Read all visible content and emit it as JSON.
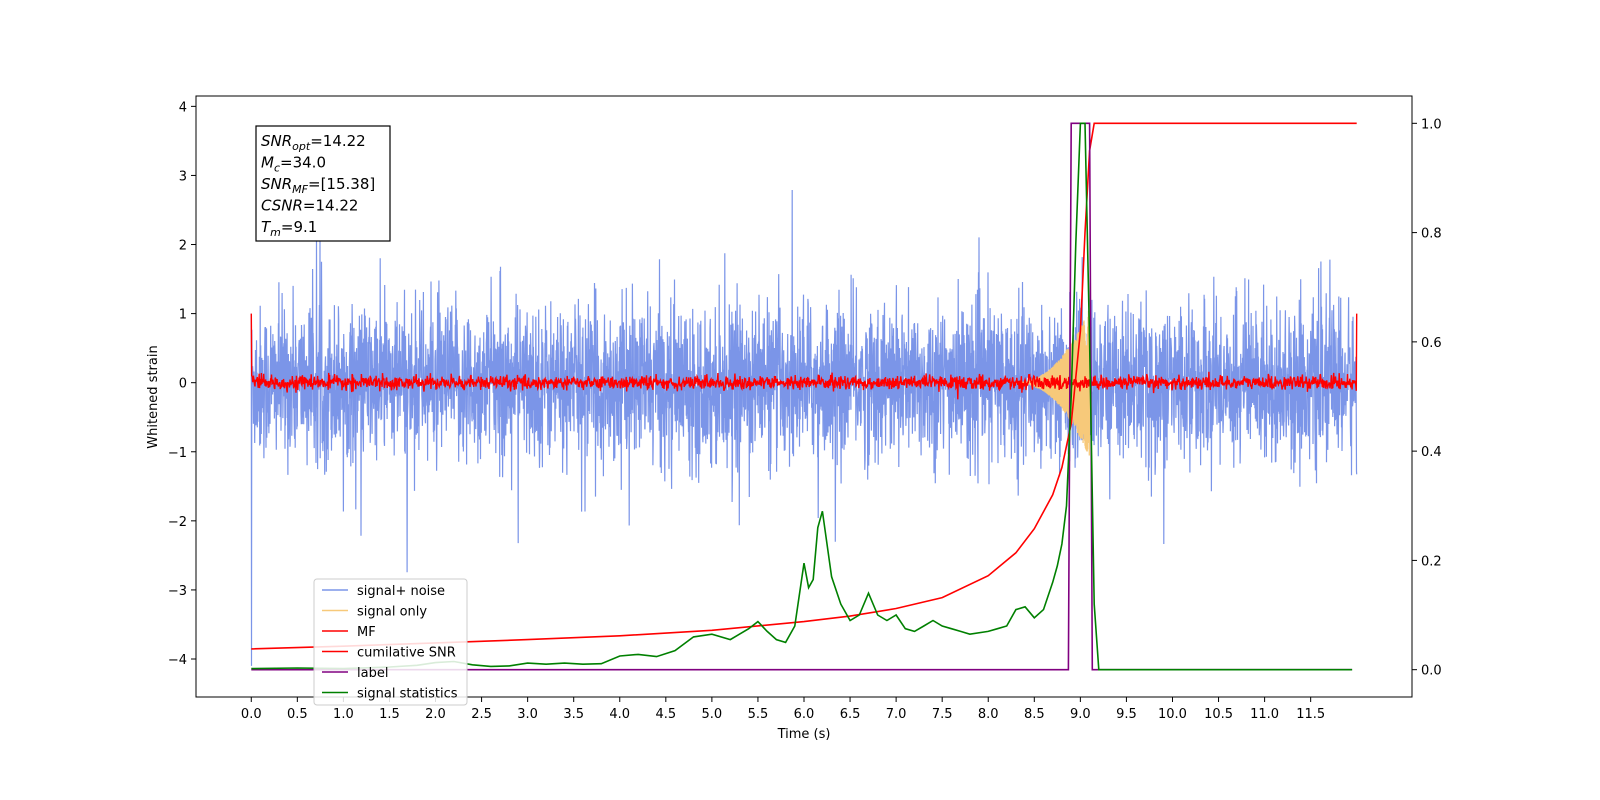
{
  "chart_data": {
    "type": "line",
    "xlabel": "Time (s)",
    "ylabel": "Whitened strain",
    "xlim": [
      -0.6,
      12.6
    ],
    "ylim": [
      -4.55,
      4.15
    ],
    "y2lim": [
      -0.05,
      1.05
    ],
    "grid": false,
    "legend_position": "lower-left",
    "x_ticks": [
      "0.0",
      "0.5",
      "1.0",
      "1.5",
      "2.0",
      "2.5",
      "3.0",
      "3.5",
      "4.0",
      "4.5",
      "5.0",
      "5.5",
      "6.0",
      "6.5",
      "7.0",
      "7.5",
      "8.0",
      "8.5",
      "9.0",
      "9.5",
      "10.0",
      "10.5",
      "11.0",
      "11.5"
    ],
    "y_ticks": [
      "4",
      "3",
      "2",
      "1",
      "0",
      "−1",
      "−2",
      "−3",
      "−4"
    ],
    "y2_ticks": [
      "1.0",
      "0.8",
      "0.6",
      "0.4",
      "0.2",
      "0.0"
    ],
    "annotation": {
      "lines": [
        {
          "sym": "SNR",
          "sub": "opt",
          "val": "=14.22"
        },
        {
          "sym": "M",
          "sub": "c",
          "val": "=34.0"
        },
        {
          "sym": "SNR",
          "sub": "MF",
          "val": "=[15.38]"
        },
        {
          "sym": "CSNR",
          "sub": "",
          "val": "=14.22"
        },
        {
          "sym": "T",
          "sub": "m",
          "val": "=9.1"
        }
      ]
    },
    "series": [
      {
        "name": "signal+ noise",
        "color": "#7b95e8",
        "axis": "left",
        "kind": "noise",
        "t_range": [
          0,
          12
        ],
        "amplitude_envelope": [
          [
            0,
            1.2
          ],
          [
            12,
            1.2
          ]
        ]
      },
      {
        "name": "signal only",
        "color": "#f7c97a",
        "axis": "left",
        "kind": "chirp",
        "t_range": [
          8.3,
          9.1
        ],
        "peak_amplitude": 0.6
      },
      {
        "name": "MF",
        "color": "#ff0000",
        "axis": "left",
        "kind": "noise_small",
        "t_range": [
          0,
          12
        ],
        "amplitude": 0.05
      },
      {
        "name": "cumilative SNR",
        "color": "#ff0000",
        "axis": "right",
        "t": [
          0.0,
          1.0,
          2.0,
          3.0,
          4.0,
          5.0,
          6.0,
          6.5,
          7.0,
          7.5,
          8.0,
          8.3,
          8.5,
          8.7,
          8.8,
          8.9,
          9.0,
          9.05,
          9.1,
          9.15,
          12.0
        ],
        "values": [
          0.038,
          0.043,
          0.049,
          0.055,
          0.062,
          0.072,
          0.088,
          0.098,
          0.112,
          0.132,
          0.172,
          0.214,
          0.258,
          0.32,
          0.37,
          0.45,
          0.62,
          0.8,
          0.95,
          1.0,
          1.0
        ]
      },
      {
        "name": "label",
        "color": "#800080",
        "axis": "right",
        "t": [
          0.0,
          8.87,
          8.9,
          9.1,
          9.13,
          11.95
        ],
        "values": [
          0.0,
          0.0,
          1.0,
          1.0,
          0.0,
          0.0
        ]
      },
      {
        "name": "signal statistics",
        "color": "#008000",
        "axis": "right",
        "t": [
          0.0,
          0.5,
          1.0,
          1.5,
          1.8,
          2.0,
          2.2,
          2.4,
          2.6,
          2.8,
          3.0,
          3.2,
          3.4,
          3.6,
          3.8,
          4.0,
          4.2,
          4.4,
          4.6,
          4.8,
          5.0,
          5.2,
          5.4,
          5.5,
          5.6,
          5.7,
          5.8,
          5.9,
          6.0,
          6.05,
          6.1,
          6.15,
          6.2,
          6.3,
          6.4,
          6.5,
          6.6,
          6.7,
          6.8,
          6.9,
          7.0,
          7.1,
          7.2,
          7.3,
          7.4,
          7.5,
          7.6,
          7.7,
          7.8,
          8.0,
          8.1,
          8.2,
          8.3,
          8.4,
          8.5,
          8.6,
          8.7,
          8.75,
          8.8,
          8.85,
          8.9,
          8.95,
          9.0,
          9.05,
          9.1,
          9.15,
          9.2,
          11.95
        ],
        "values": [
          0.002,
          0.003,
          0.002,
          0.005,
          0.008,
          0.013,
          0.015,
          0.009,
          0.006,
          0.007,
          0.012,
          0.01,
          0.012,
          0.01,
          0.011,
          0.025,
          0.028,
          0.024,
          0.035,
          0.06,
          0.065,
          0.055,
          0.075,
          0.088,
          0.07,
          0.055,
          0.05,
          0.08,
          0.195,
          0.15,
          0.165,
          0.26,
          0.29,
          0.17,
          0.12,
          0.09,
          0.1,
          0.14,
          0.1,
          0.09,
          0.1,
          0.075,
          0.07,
          0.08,
          0.09,
          0.08,
          0.075,
          0.07,
          0.065,
          0.07,
          0.075,
          0.08,
          0.11,
          0.115,
          0.095,
          0.11,
          0.16,
          0.19,
          0.23,
          0.3,
          0.5,
          0.78,
          1.0,
          1.0,
          0.6,
          0.12,
          0.0,
          0.0
        ]
      }
    ]
  }
}
